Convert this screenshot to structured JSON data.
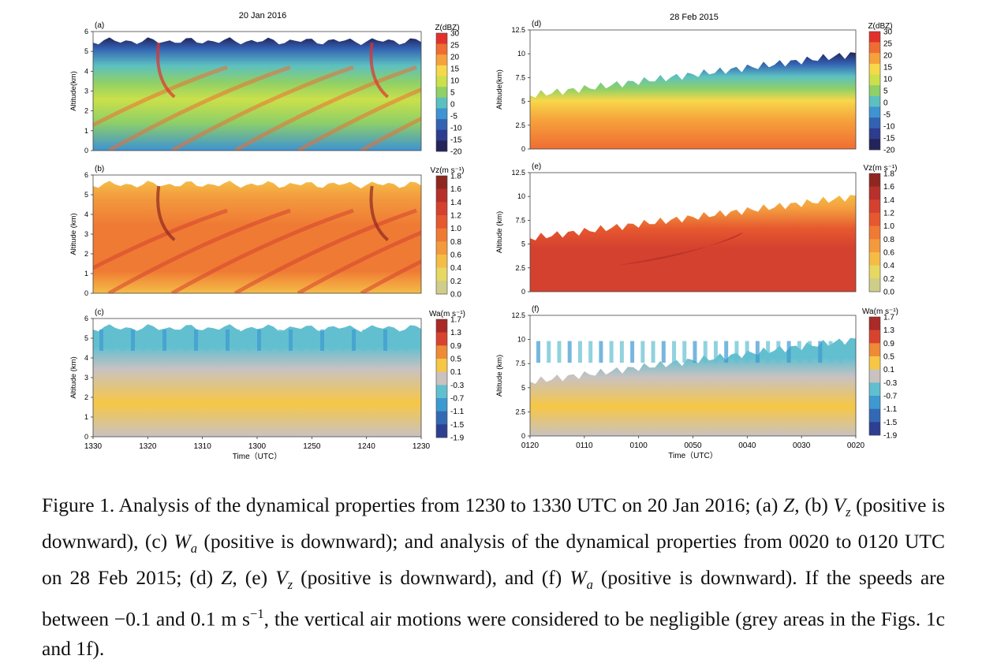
{
  "figure": {
    "left_title": "20 Jan 2016",
    "right_title": "28 Feb 2015",
    "panels": [
      {
        "id": "a",
        "label": "(a)",
        "ylabel": "Altitude(km)",
        "ylim": [
          0,
          6
        ],
        "yticks": [
          "0",
          "1",
          "2",
          "3",
          "4",
          "5",
          "6"
        ],
        "field": "Z",
        "cbar": "Z"
      },
      {
        "id": "b",
        "label": "(b)",
        "ylabel": "Altitude (km)",
        "ylim": [
          0,
          6
        ],
        "yticks": [
          "0",
          "1",
          "2",
          "3",
          "4",
          "5",
          "6"
        ],
        "field": "Vz",
        "cbar": "Vz"
      },
      {
        "id": "c",
        "label": "(c)",
        "ylabel": "Altitude (km)",
        "ylim": [
          0,
          6
        ],
        "yticks": [
          "0",
          "1",
          "2",
          "3",
          "4",
          "5",
          "6"
        ],
        "field": "Wa",
        "cbar": "Wa",
        "xticks": [
          "1330",
          "1320",
          "1310",
          "1300",
          "1250",
          "1240",
          "1230"
        ],
        "xlabel": "Time（UTC）"
      },
      {
        "id": "d",
        "label": "(d)",
        "ylabel": "Altitude(km)",
        "ylim": [
          0,
          12.5
        ],
        "yticks": [
          "0",
          "2.5",
          "5",
          "7.5",
          "10",
          "12.5"
        ],
        "field": "Z",
        "cbar": "Z"
      },
      {
        "id": "e",
        "label": "(e)",
        "ylabel": "Altitude (km)",
        "ylim": [
          0,
          12.5
        ],
        "yticks": [
          "0",
          "2.5",
          "5",
          "7.5",
          "10",
          "12.5"
        ],
        "field": "Vz",
        "cbar": "Vz"
      },
      {
        "id": "f",
        "label": "(f)",
        "ylabel": "Altitude (km)",
        "ylim": [
          0,
          12.5
        ],
        "yticks": [
          "0",
          "2.5",
          "5",
          "7.5",
          "10",
          "12.5"
        ],
        "field": "Wa",
        "cbar": "Wa",
        "xticks": [
          "0120",
          "0110",
          "0100",
          "0050",
          "0040",
          "0030",
          "0020"
        ],
        "xlabel": "Time（UTC）"
      }
    ],
    "colorbars": {
      "Z": {
        "title": "Z(dBZ)",
        "labels": [
          "30",
          "25",
          "20",
          "15",
          "10",
          "5",
          "0",
          "-5",
          "-10",
          "-15",
          "-20"
        ],
        "colors": [
          "#e2312c",
          "#ef6d32",
          "#f6a23c",
          "#f7d84a",
          "#cbe04a",
          "#8fd067",
          "#5cc0c1",
          "#3e93d1",
          "#3362b3",
          "#2d3c8e",
          "#22245a"
        ]
      },
      "Vz": {
        "title": "Vz(m s⁻¹)",
        "labels": [
          "1.8",
          "1.6",
          "1.4",
          "1.2",
          "1.0",
          "0.8",
          "0.6",
          "0.4",
          "0.2",
          "0.0"
        ],
        "colors": [
          "#8e2720",
          "#b8302a",
          "#d5412f",
          "#e6582f",
          "#ef7a34",
          "#f39a3e",
          "#f5bd46",
          "#e7d862",
          "#cfcd8a"
        ]
      },
      "Wa": {
        "title": "Wa(m s⁻¹)",
        "labels": [
          "1.7",
          "1.3",
          "0.9",
          "0.5",
          "0.1",
          "-0.3",
          "-0.7",
          "-1.1",
          "-1.5",
          "-1.9"
        ],
        "colors": [
          "#a92a27",
          "#d8432f",
          "#ef8a36",
          "#f6c745",
          "#c9c2c1",
          "#62bfd0",
          "#3d99d0",
          "#3369b4",
          "#2d3f91"
        ]
      }
    }
  },
  "caption": {
    "t1": "Figure 1. Analysis of the dynamical properties from 1230 to 1330 UTC on 20 Jan 2016; (a) ",
    "z1": "Z",
    "t2": ", (b) ",
    "v1": "V",
    "v1sub": "z",
    "t3": " (positive is downward), (c) ",
    "w1": "W",
    "w1sub": "a",
    "t4": " (positive is downward); and analysis of the dynamical properties from 0020 to 0120 UTC on 28 Feb 2015; (d) ",
    "z2": "Z",
    "t5": ", (e) ",
    "v2": "V",
    "v2sub": "z",
    "t6": " (positive is downward), and (f) ",
    "w2": "W",
    "w2sub": "a",
    "t7": " (positive is downward). If the speeds are between −0.1 and 0.1 m s",
    "sup": "−1",
    "t8": ", the vertical air motions were considered to be negligible (grey areas in the Figs. 1c and 1f)."
  }
}
